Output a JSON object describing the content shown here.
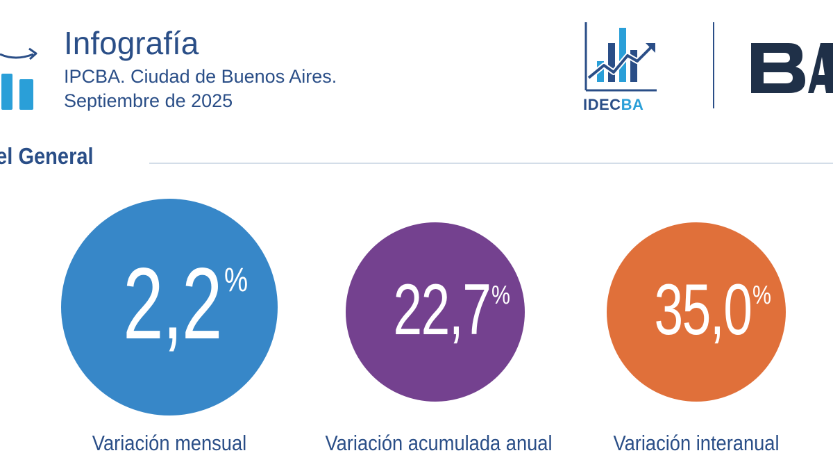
{
  "header": {
    "title": "Infografía",
    "subtitle_line1": "IPCBA. Ciudad de Buenos Aires.",
    "subtitle_line2": "Septiembre de 2025"
  },
  "logos": {
    "idecba_prefix": "IDEC",
    "idecba_suffix": "BA",
    "ba_text": "BA"
  },
  "section": {
    "title": "vel General"
  },
  "stats": [
    {
      "value": "2,2",
      "unit": "%",
      "caption": "Variación mensual",
      "color": "#3787c8"
    },
    {
      "value": "22,7",
      "unit": "%",
      "caption": "Variación acumulada anual",
      "color": "#74418f"
    },
    {
      "value": "35,0",
      "unit": "%",
      "caption": "Variación interanual",
      "color": "#e0703a"
    }
  ],
  "colors": {
    "text": "#2a4e87",
    "accent_light_blue": "#2a9fd8",
    "divider": "#d3dde8"
  }
}
